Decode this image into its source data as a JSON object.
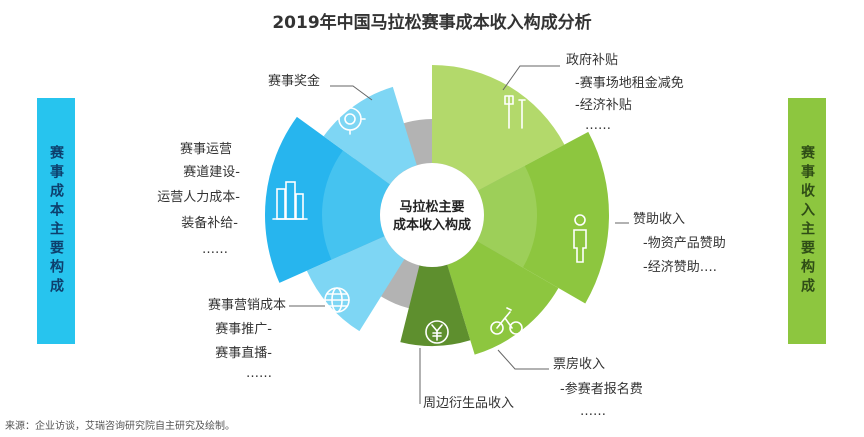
{
  "title": "2019年中国马拉松赛事成本收入构成分析",
  "left_box": "赛事成本主要构成",
  "right_box": "赛事收入主要构成",
  "center": {
    "line1": "马拉松主要",
    "line2": "成本收入构成"
  },
  "cost": {
    "prize": {
      "title": "赛事奖金"
    },
    "operation": {
      "items": [
        "赛事运营",
        "赛道建设-",
        "运营人力成本-",
        "装备补给-",
        "……"
      ]
    },
    "marketing": {
      "title": "赛事营销成本",
      "items": [
        "赛事推广-",
        "赛事直播-",
        "……"
      ]
    }
  },
  "income": {
    "government": {
      "title": "政府补贴",
      "items": [
        "-赛事场地租金减免",
        "-经济补贴",
        "……"
      ]
    },
    "sponsorship": {
      "title": "赞助收入",
      "items": [
        "-物资产品赞助",
        "-经济赞助…."
      ]
    },
    "ticket": {
      "title": "票房收入",
      "items": [
        "-参赛者报名费",
        "……"
      ]
    },
    "merchandise": {
      "title": "周边衍生品收入"
    }
  },
  "source": "来源：企业访谈，艾瑞咨询研究院自主研究及绘制。",
  "icons": [
    "trophy-icon",
    "building-icon",
    "globe-icon",
    "tools-icon",
    "person-icon",
    "cyclist-icon",
    "yuan-coin-icon"
  ],
  "colors": {
    "cost_blue": "#27b5ee",
    "cost_light": "#7ed6f4",
    "income_green": "#8dc63f",
    "income_light": "#b3d96b",
    "income_dark": "#5e8f2e",
    "gray": "#b3b3b3"
  }
}
